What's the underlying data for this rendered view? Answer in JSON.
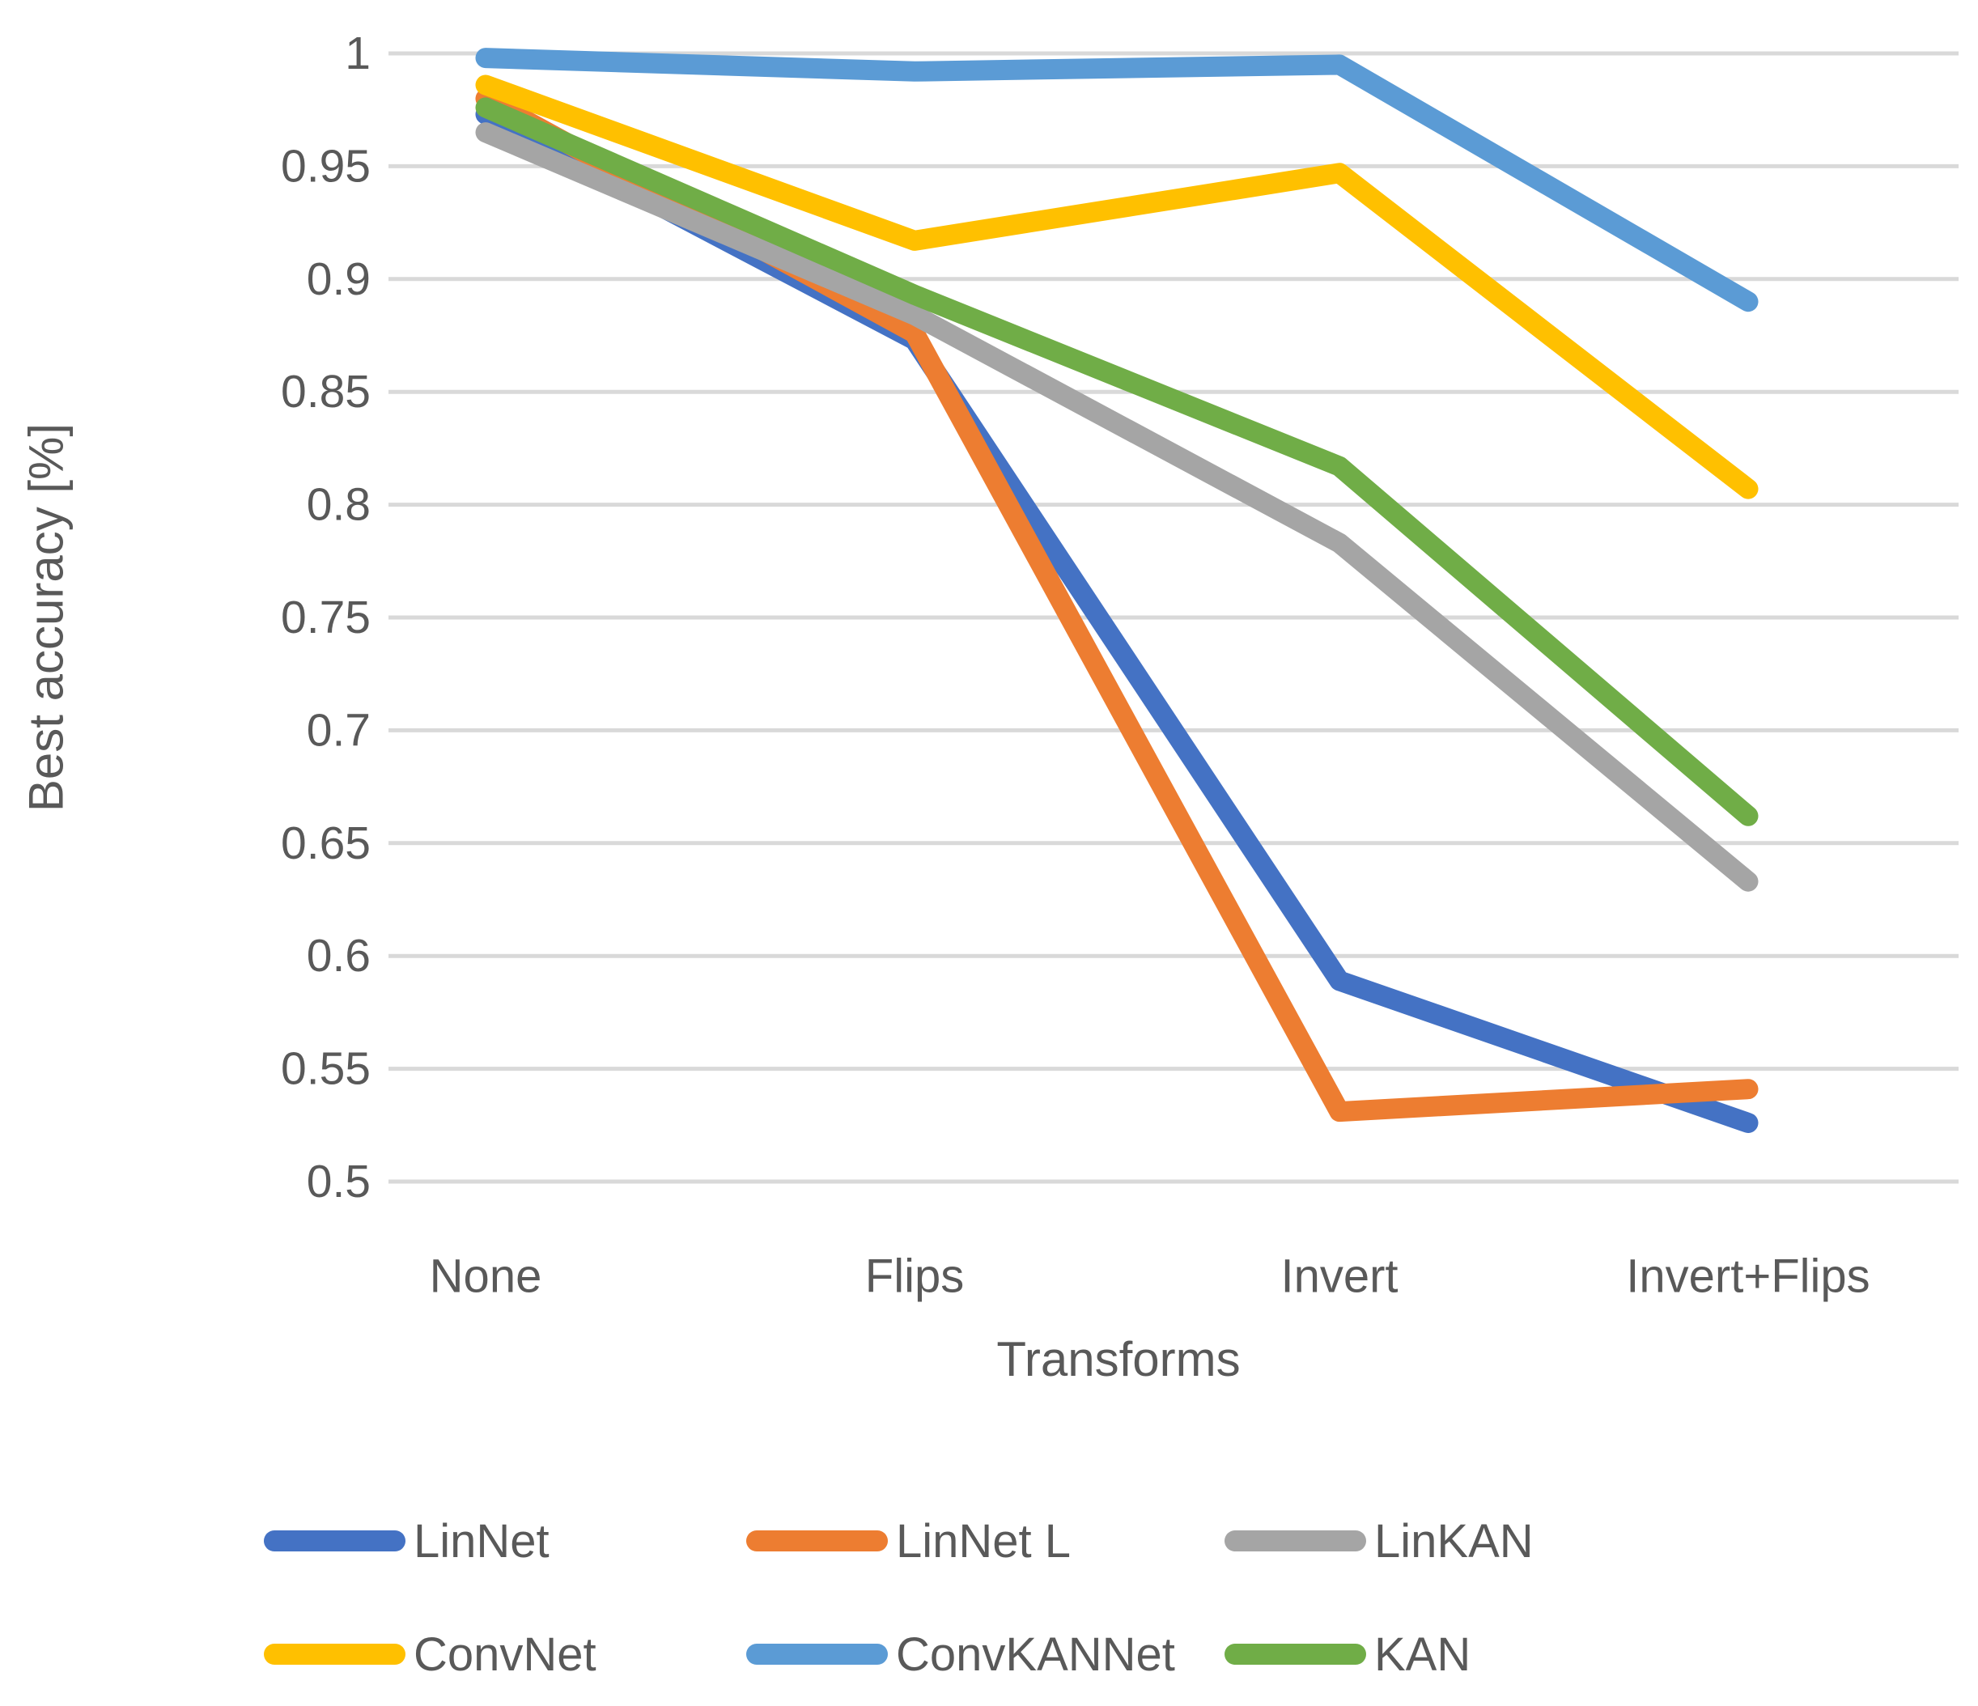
{
  "figure": {
    "y_axis_title": "Best accuracy [%]",
    "x_axis_title": "Transforms"
  },
  "chart_data": {
    "type": "line",
    "title": "",
    "xlabel": "Transforms",
    "ylabel": "Best accuracy [%]",
    "categories": [
      "None",
      "Flips",
      "Invert",
      "Invert+Flips"
    ],
    "y_ticks": [
      1,
      0.95,
      0.9,
      0.85,
      0.8,
      0.75,
      0.7,
      0.65,
      0.6,
      0.55,
      0.5
    ],
    "ylim": [
      0.5,
      1.0
    ],
    "grid": "horizontal-only",
    "legend_position": "bottom-two-rows",
    "series": [
      {
        "name": "LinNet",
        "color": "#4472C4",
        "values": [
          0.973,
          0.873,
          0.589,
          0.526
        ]
      },
      {
        "name": "LinNet L",
        "color": "#ED7D31",
        "values": [
          0.98,
          0.876,
          0.531,
          0.541
        ]
      },
      {
        "name": "LinKAN",
        "color": "#A5A5A5",
        "values": [
          0.965,
          0.884,
          0.783,
          0.633
        ]
      },
      {
        "name": "ConvNet",
        "color": "#FFC000",
        "values": [
          0.986,
          0.917,
          0.947,
          0.807
        ]
      },
      {
        "name": "ConvKANNet",
        "color": "#5B9BD5",
        "values": [
          0.998,
          0.992,
          0.995,
          0.89
        ]
      },
      {
        "name": "KAN",
        "color": "#70AD47",
        "values": [
          0.976,
          0.893,
          0.817,
          0.662
        ]
      }
    ],
    "colors": {
      "gridline": "#D9D9D9",
      "tick_text": "#595959",
      "background": "#FFFFFF"
    }
  },
  "legend": {
    "rows": [
      [
        "LinNet",
        "LinNet L",
        "LinKAN"
      ],
      [
        "ConvNet",
        "ConvKANNet",
        "KAN"
      ]
    ]
  }
}
